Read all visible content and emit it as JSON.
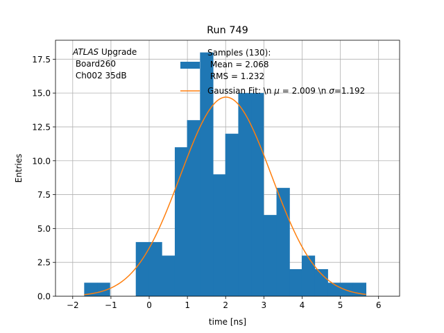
{
  "chart_data": {
    "type": "bar",
    "title": "Run 749",
    "xlabel": "time [ns]",
    "ylabel": "Entries",
    "xlim": [
      -2.45,
      6.55
    ],
    "ylim": [
      0,
      18.9
    ],
    "xticks": [
      -2,
      -1,
      0,
      1,
      2,
      3,
      4,
      5,
      6
    ],
    "yticks": [
      0.0,
      2.5,
      5.0,
      7.5,
      10.0,
      12.5,
      15.0,
      17.5
    ],
    "grid": true,
    "histogram": {
      "name": "Samples (130)",
      "bin_edges": [
        -1.7,
        -1.36,
        -1.03,
        -0.69,
        -0.35,
        -0.01,
        0.33,
        0.67,
        0.99,
        1.33,
        1.67,
        1.99,
        2.33,
        2.67,
        2.99,
        3.33,
        3.67,
        3.99,
        4.33,
        4.67,
        4.99,
        5.33,
        5.67
      ],
      "counts": [
        1,
        1,
        0,
        0,
        4,
        4,
        3,
        11,
        13,
        18,
        9,
        12,
        15,
        15,
        6,
        8,
        2,
        3,
        2,
        1,
        1,
        1
      ],
      "color": "#1f77b4"
    },
    "fit": {
      "name": "Gaussian Fit",
      "amplitude": 14.7,
      "mu": 2.009,
      "sigma": 1.192,
      "x_range": [
        -1.7,
        5.67
      ],
      "color": "#ff7f0e"
    },
    "legend": {
      "placement": "top-right",
      "hist_lines": [
        "Samples (130):",
        " Mean = 2.068",
        " RMS = 1.232"
      ],
      "fit_prefix": "Gaussian Fit: \\n ",
      "fit_mu_symbol": "μ",
      "fit_mid": " = 2.009 \\n ",
      "fit_sigma_symbol": "σ",
      "fit_suffix": "=1.192"
    },
    "annotation": {
      "italic": "ATLAS",
      "rest": " Upgrade",
      "line2": " Board260",
      "line3": " Ch002 35dB"
    }
  }
}
